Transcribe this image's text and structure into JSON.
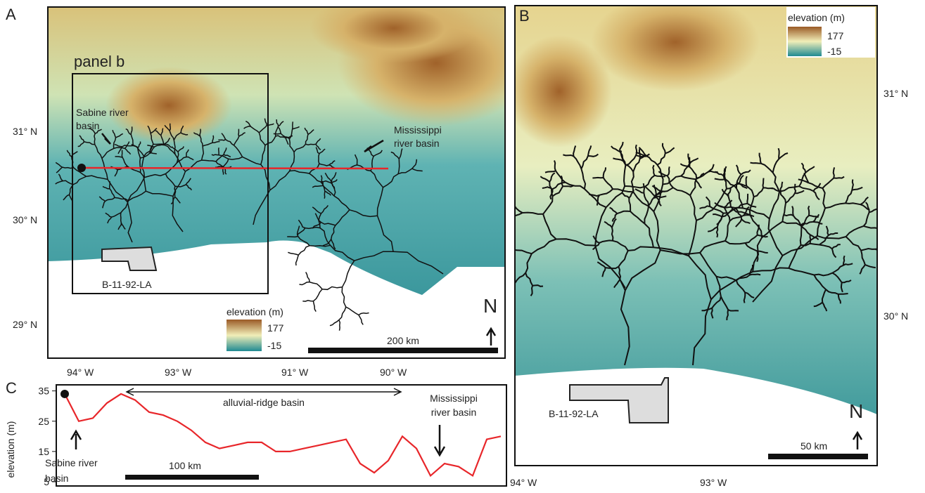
{
  "panel_a": {
    "label": "A",
    "box_label": "panel b",
    "sabine": [
      "Sabine river",
      "basin"
    ],
    "mississippi": [
      "Mississippi",
      "river basin"
    ],
    "site": "B-11-92-LA",
    "legend": {
      "title": "elevation (m)",
      "high": "177",
      "low": "-15"
    },
    "scale": "200 km",
    "north": "N",
    "lat_labels": [
      "31° N",
      "30° N",
      "29° N"
    ],
    "lon_labels": [
      "94° W",
      "93° W",
      "91° W",
      "90° W"
    ]
  },
  "panel_b": {
    "label": "B",
    "site": "B-11-92-LA",
    "legend": {
      "title": "elevation (m)",
      "high": "177",
      "low": "-15"
    },
    "scale": "50 km",
    "north": "N",
    "lat_labels": [
      "31° N",
      "30° N"
    ],
    "lon_labels": [
      "94° W",
      "93° W"
    ]
  },
  "panel_c": {
    "label": "C",
    "ylabel": "elevation (m)",
    "ylim": [
      5,
      37
    ],
    "yticks": [
      5,
      15,
      25,
      35
    ],
    "values": [
      34,
      25,
      26,
      31,
      34,
      32,
      28,
      27,
      25,
      22,
      18,
      16,
      17,
      18,
      18,
      15,
      15,
      16,
      17,
      18,
      19,
      11,
      8,
      12,
      20,
      16,
      7,
      11,
      10,
      7,
      19,
      20
    ],
    "color": "#e8262a",
    "ridge": "alluvial-ridge basin",
    "mississippi": [
      "Mississippi",
      "river basin"
    ],
    "sabine": [
      "Sabine river",
      "basin"
    ],
    "scale": "100 km"
  }
}
